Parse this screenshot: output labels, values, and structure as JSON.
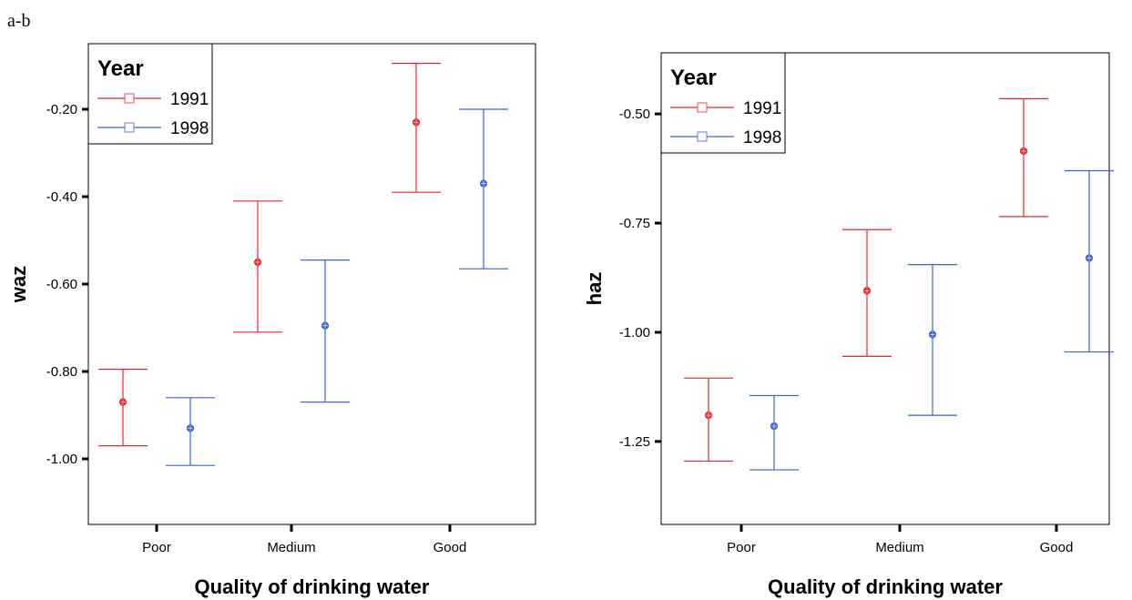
{
  "caption": "a-b",
  "chart_data": [
    {
      "type": "errorbar",
      "title": "",
      "xlabel": "Quality of drinking water",
      "ylabel": "waz",
      "categories": [
        "Poor",
        "Medium",
        "Good"
      ],
      "ylim": [
        -1.15,
        -0.05
      ],
      "yticks": [
        -0.2,
        -0.4,
        -0.6,
        -0.8,
        -1.0
      ],
      "ytick_labels": [
        "-0.20",
        "-0.40",
        "-0.60",
        "-0.80",
        "-1.00"
      ],
      "legend": {
        "title": "Year",
        "position": "top-left"
      },
      "series": [
        {
          "name": "1991",
          "color": "#e8282e",
          "mean": [
            -0.87,
            -0.55,
            -0.23
          ],
          "lower": [
            -0.97,
            -0.71,
            -0.39
          ],
          "upper": [
            -0.795,
            -0.41,
            -0.095
          ]
        },
        {
          "name": "1998",
          "color": "#3a63d3",
          "mean": [
            -0.93,
            -0.695,
            -0.37
          ],
          "lower": [
            -1.015,
            -0.87,
            -0.565
          ],
          "upper": [
            -0.86,
            -0.545,
            -0.2
          ]
        }
      ]
    },
    {
      "type": "errorbar",
      "title": "",
      "xlabel": "Quality of drinking water",
      "ylabel": "haz",
      "categories": [
        "Poor",
        "Medium",
        "Good"
      ],
      "ylim": [
        -1.44,
        -0.36
      ],
      "yticks": [
        -0.5,
        -0.75,
        -1.0,
        -1.25
      ],
      "ytick_labels": [
        "-0.50",
        "-0.75",
        "-1.00",
        "-1.25"
      ],
      "legend": {
        "title": "Year",
        "position": "top-left"
      },
      "series": [
        {
          "name": "1991",
          "color": "#e8282e",
          "mean": [
            -1.19,
            -0.905,
            -0.585
          ],
          "lower": [
            -1.295,
            -1.055,
            -0.735
          ],
          "upper": [
            -1.105,
            -0.765,
            -0.465
          ]
        },
        {
          "name": "1998",
          "color": "#3a63d3",
          "mean": [
            -1.215,
            -1.005,
            -0.83
          ],
          "lower": [
            -1.315,
            -1.19,
            -1.045
          ],
          "upper": [
            -1.145,
            -0.845,
            -0.63
          ]
        }
      ]
    }
  ]
}
